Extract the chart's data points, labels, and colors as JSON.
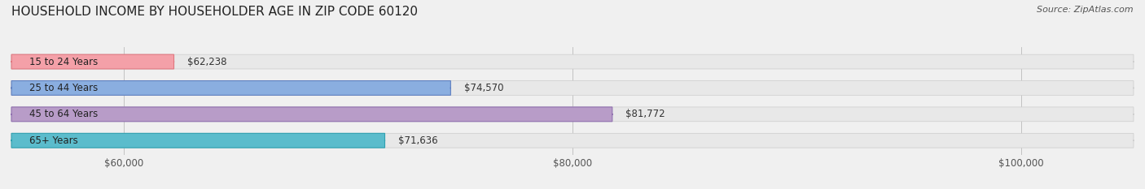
{
  "title": "HOUSEHOLD INCOME BY HOUSEHOLDER AGE IN ZIP CODE 60120",
  "source": "Source: ZipAtlas.com",
  "categories": [
    "15 to 24 Years",
    "25 to 44 Years",
    "45 to 64 Years",
    "65+ Years"
  ],
  "values": [
    62238,
    74570,
    81772,
    71636
  ],
  "bar_colors": [
    "#f4a0a8",
    "#8aaee0",
    "#b89cc8",
    "#5bbccc"
  ],
  "bar_edge_colors": [
    "#e07880",
    "#6080c0",
    "#9070b0",
    "#30a0b0"
  ],
  "value_labels": [
    "$62,238",
    "$74,570",
    "$81,772",
    "$71,636"
  ],
  "xmin": 55000,
  "xmax": 105000,
  "xticks": [
    60000,
    80000,
    100000
  ],
  "xtick_labels": [
    "$60,000",
    "$80,000",
    "$100,000"
  ],
  "background_color": "#f0f0f0",
  "bar_bg_color": "#e8e8e8",
  "title_fontsize": 11,
  "source_fontsize": 8,
  "label_fontsize": 8.5,
  "tick_fontsize": 8.5
}
